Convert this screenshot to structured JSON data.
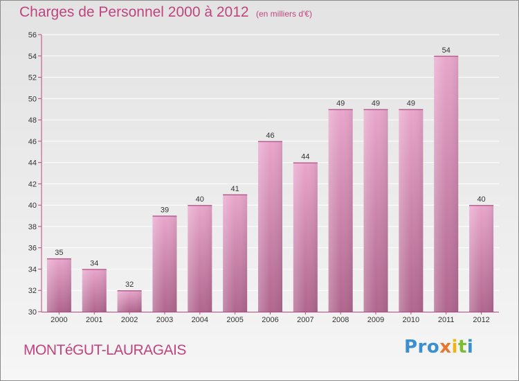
{
  "title": "Charges de Personnel 2000 à 2012",
  "subtitle": "(en milliers d'€)",
  "commune": "MONTéGUT-LAURAGAIS",
  "logo": {
    "p1": "Pro",
    "p2": "x",
    "p3": "i",
    "p4": "t",
    "p5": "i"
  },
  "colors": {
    "accent": "#c0447e",
    "bar_light": "#e8a6cb",
    "bar_dark": "#b0668e",
    "axis": "#c0447e",
    "grid": "#ffffff"
  },
  "chart_data": {
    "type": "bar",
    "categories": [
      "2000",
      "2001",
      "2002",
      "2003",
      "2004",
      "2005",
      "2006",
      "2007",
      "2008",
      "2009",
      "2010",
      "2011",
      "2012"
    ],
    "values": [
      35,
      34,
      32,
      39,
      40,
      41,
      46,
      44,
      49,
      49,
      49,
      54,
      40
    ],
    "ylim": [
      30,
      56
    ],
    "yticks": [
      30,
      32,
      34,
      36,
      38,
      40,
      42,
      44,
      46,
      48,
      50,
      52,
      54,
      56
    ],
    "grid": true,
    "xlabel": "",
    "ylabel": ""
  }
}
